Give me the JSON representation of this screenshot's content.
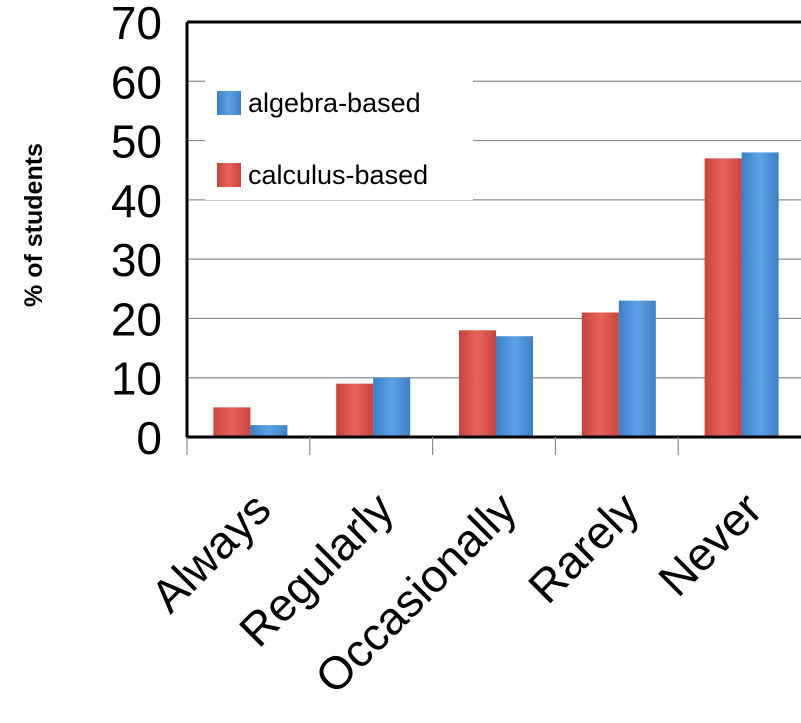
{
  "chart_data": {
    "type": "bar",
    "title": "",
    "xlabel": "",
    "ylabel": "% of students",
    "ylim": [
      0,
      70
    ],
    "yticks": [
      0,
      10,
      20,
      30,
      40,
      50,
      60,
      70
    ],
    "grid": true,
    "legend_position": "top-left",
    "categories": [
      "Always",
      "Regularly",
      "Occasionally",
      "Rarely",
      "Never"
    ],
    "series": [
      {
        "name": "calculus-based",
        "color": "#d9534a",
        "values": [
          5,
          9,
          18,
          21,
          47
        ]
      },
      {
        "name": "algebra-based",
        "color": "#4a90d9",
        "values": [
          2,
          10,
          17,
          23,
          48
        ]
      }
    ],
    "legend_order": [
      "algebra-based",
      "calculus-based"
    ]
  }
}
